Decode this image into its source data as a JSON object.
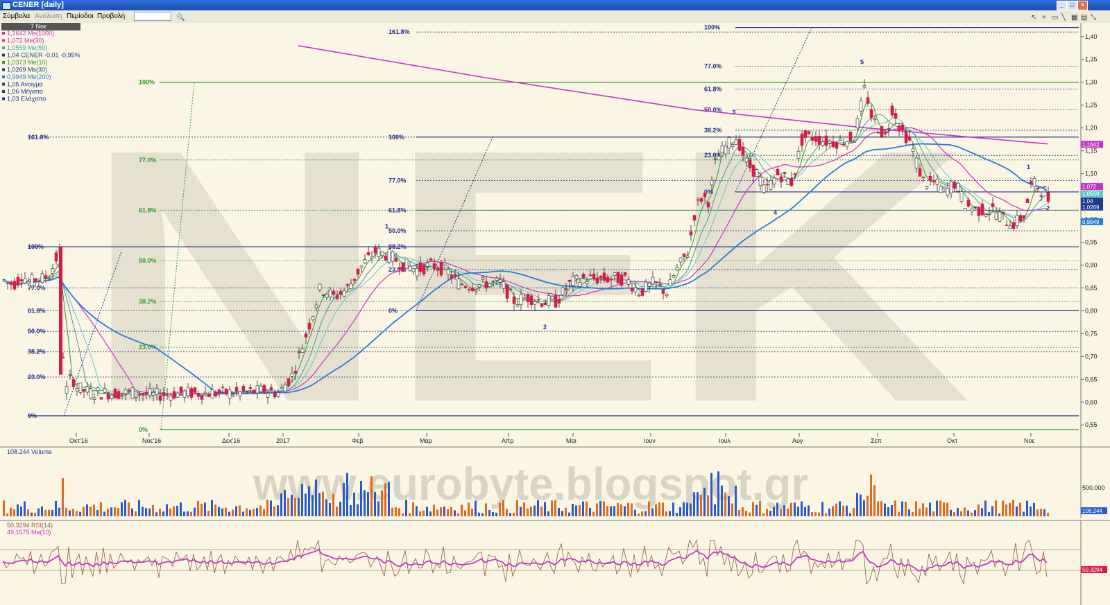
{
  "window": {
    "title": "CENER [daily]",
    "min": "_",
    "max": "□",
    "close": "×",
    "min2": "_",
    "max2": "□",
    "close2": "×"
  },
  "menu": [
    "Σύμβολα",
    "Ανάλυση",
    "Περίοδοι",
    "Προβολή"
  ],
  "toolbar_icons": [
    "cursor-icon",
    "crosshair-icon",
    "rectangle-icon",
    "line-icon",
    "grid-icon",
    "calendar-icon",
    "resize-icon"
  ],
  "colors": {
    "bg": "#fbf6e4",
    "up": "#ffffff",
    "down": "#d8194b",
    "ma1000": "#c535c5",
    "ma30": "#c535c5",
    "ma50": "#60c8c8",
    "ma10": "#2a9a2a",
    "ms30": "#1c3b8e",
    "ma200": "#2a7ad8",
    "fib_blue": "#1c2c8c",
    "fib_green": "#2a9a2a",
    "vol_up": "#2a5ad0",
    "vol_down": "#e06a20",
    "rsi": "#8a5a3a",
    "rsi_ma": "#c535c5"
  },
  "date_badge": "7 Νοε",
  "legend": [
    {
      "text": "1,1642 Ms(1000)",
      "color": "#c535c5"
    },
    {
      "text": "1,072 Me(30)",
      "color": "#c535c5"
    },
    {
      "text": "1,0559 Me(50)",
      "color": "#3aa8a8"
    },
    {
      "text": "1,04 CENER -0,01 -0,95%",
      "color": "#1c3b8e"
    },
    {
      "text": "1,0373 Me(10)",
      "color": "#2a9a2a"
    },
    {
      "text": "1,0269 Ms(30)",
      "color": "#1c3b8e"
    },
    {
      "text": "0,9949 Me(200)",
      "color": "#2a7ad8"
    },
    {
      "text": "1,05 Ανοιγμα",
      "color": "#1c3b8e"
    },
    {
      "text": "1,06 Μέγιστο",
      "color": "#1c3b8e"
    },
    {
      "text": "1,03 Ελάχιστο",
      "color": "#1c3b8e"
    }
  ],
  "watermark": "www.eurobyte.blogspot.gr",
  "background_letters": "NEK",
  "volume_label": "108.244 Volume",
  "rsi_labels": [
    "50,3294 RSI(14)",
    "49,1575 Ma(10)"
  ],
  "chart_data": {
    "type": "candlestick",
    "price_axis": {
      "min": 0.52,
      "max": 1.43,
      "ticks": [
        "1,40",
        "1,35",
        "1,30",
        "1,25",
        "1,20",
        "1,15",
        "1,10",
        "1,05",
        "1,00",
        "0,95",
        "0,90",
        "0,85",
        "0,80",
        "0,75",
        "0,70",
        "0,65",
        "0,60",
        "0,55"
      ]
    },
    "x_ticks": [
      "Οκτ'16",
      "Νοε'16",
      "Δεκ'16",
      "2017",
      "Φεβ",
      "Μαρ",
      "Απρ",
      "Μαι",
      "Ιουν",
      "Ιουλ",
      "Αυγ",
      "Σεπ",
      "Οκτ",
      "Νοε"
    ],
    "price_path": [
      [
        0,
        0.87
      ],
      [
        10,
        0.86
      ],
      [
        20,
        0.86
      ],
      [
        30,
        0.88
      ],
      [
        40,
        0.86
      ],
      [
        50,
        0.87
      ],
      [
        60,
        0.87
      ],
      [
        70,
        0.88
      ],
      [
        78,
        0.91
      ],
      [
        84,
        0.93
      ],
      [
        90,
        0.66
      ],
      [
        96,
        0.61
      ],
      [
        100,
        0.66
      ],
      [
        110,
        0.63
      ],
      [
        130,
        0.62
      ],
      [
        160,
        0.62
      ],
      [
        190,
        0.62
      ],
      [
        220,
        0.615
      ],
      [
        260,
        0.62
      ],
      [
        300,
        0.62
      ],
      [
        340,
        0.62
      ],
      [
        380,
        0.625
      ],
      [
        400,
        0.62
      ],
      [
        420,
        0.66
      ],
      [
        440,
        0.75
      ],
      [
        460,
        0.85
      ],
      [
        480,
        0.83
      ],
      [
        500,
        0.85
      ],
      [
        520,
        0.9
      ],
      [
        540,
        0.93
      ],
      [
        560,
        0.92
      ],
      [
        580,
        0.9
      ],
      [
        600,
        0.89
      ],
      [
        620,
        0.9
      ],
      [
        640,
        0.89
      ],
      [
        660,
        0.86
      ],
      [
        680,
        0.855
      ],
      [
        700,
        0.86
      ],
      [
        720,
        0.86
      ],
      [
        740,
        0.82
      ],
      [
        760,
        0.83
      ],
      [
        780,
        0.82
      ],
      [
        800,
        0.82
      ],
      [
        820,
        0.86
      ],
      [
        840,
        0.87
      ],
      [
        860,
        0.87
      ],
      [
        880,
        0.87
      ],
      [
        900,
        0.87
      ],
      [
        920,
        0.84
      ],
      [
        940,
        0.86
      ],
      [
        960,
        0.84
      ],
      [
        970,
        0.88
      ],
      [
        990,
        0.93
      ],
      [
        1000,
        1.02
      ],
      [
        1010,
        1.05
      ],
      [
        1020,
        1.04
      ],
      [
        1030,
        1.13
      ],
      [
        1045,
        1.16
      ],
      [
        1060,
        1.18
      ],
      [
        1075,
        1.12
      ],
      [
        1090,
        1.1
      ],
      [
        1100,
        1.06
      ],
      [
        1110,
        1.08
      ],
      [
        1120,
        1.1
      ],
      [
        1140,
        1.08
      ],
      [
        1155,
        1.18
      ],
      [
        1170,
        1.18
      ],
      [
        1190,
        1.17
      ],
      [
        1210,
        1.17
      ],
      [
        1230,
        1.18
      ],
      [
        1245,
        1.29
      ],
      [
        1255,
        1.22
      ],
      [
        1265,
        1.2
      ],
      [
        1275,
        1.18
      ],
      [
        1285,
        1.25
      ],
      [
        1295,
        1.2
      ],
      [
        1310,
        1.17
      ],
      [
        1320,
        1.12
      ],
      [
        1330,
        1.08
      ],
      [
        1345,
        1.08
      ],
      [
        1360,
        1.06
      ],
      [
        1375,
        1.08
      ],
      [
        1390,
        1.03
      ],
      [
        1410,
        1.02
      ],
      [
        1430,
        1.02
      ],
      [
        1445,
        1.0
      ],
      [
        1460,
        0.99
      ],
      [
        1475,
        1.01
      ],
      [
        1485,
        1.08
      ],
      [
        1495,
        1.07
      ],
      [
        1505,
        1.06
      ],
      [
        1510,
        1.04
      ]
    ],
    "moving_averages": [
      {
        "name": "Ms(1000)",
        "value": 1.1642
      },
      {
        "name": "Me(30)",
        "value": 1.072
      },
      {
        "name": "Me(50)",
        "value": 1.0559
      },
      {
        "name": "Me(10)",
        "value": 1.0373
      },
      {
        "name": "Ms(30)",
        "value": 1.0269
      },
      {
        "name": "Me(200)",
        "value": 0.9949
      }
    ],
    "last_price": 1.04,
    "price_badges": [
      "1,1642",
      "1,072",
      "1,0559",
      "1,04",
      "1,0269",
      "0,9949"
    ],
    "fib_sets": [
      {
        "color": "blue",
        "levels": [
          {
            "label": "161.8%",
            "price": 1.18
          },
          {
            "label": "100%",
            "price": 0.94
          },
          {
            "label": "77.0%",
            "price": 0.85
          },
          {
            "label": "61.8%",
            "price": 0.8
          },
          {
            "label": "50.0%",
            "price": 0.755
          },
          {
            "label": "38.2%",
            "price": 0.71
          },
          {
            "label": "23.0%",
            "price": 0.655
          },
          {
            "label": "0%",
            "price": 0.57
          }
        ]
      },
      {
        "color": "green",
        "levels": [
          {
            "label": "100%",
            "price": 1.3
          },
          {
            "label": "77.0%",
            "price": 1.13
          },
          {
            "label": "61.8%",
            "price": 1.02
          },
          {
            "label": "50.0%",
            "price": 0.91
          },
          {
            "label": "38.2%",
            "price": 0.82
          },
          {
            "label": "23.0%",
            "price": 0.72
          },
          {
            "label": "0%",
            "price": 0.54
          }
        ]
      },
      {
        "color": "blue",
        "levels": [
          {
            "label": "161.8%",
            "price": 1.41
          },
          {
            "label": "100%",
            "price": 1.18
          },
          {
            "label": "77.0%",
            "price": 1.085
          },
          {
            "label": "61.8%",
            "price": 1.02
          },
          {
            "label": "50.0%",
            "price": 0.975
          },
          {
            "label": "38.2%",
            "price": 0.94
          },
          {
            "label": "23.0%",
            "price": 0.89
          },
          {
            "label": "0%",
            "price": 0.8
          }
        ]
      },
      {
        "color": "blue",
        "levels": [
          {
            "label": "100%",
            "price": 1.42
          },
          {
            "label": "77.0%",
            "price": 1.335
          },
          {
            "label": "61.8%",
            "price": 1.285
          },
          {
            "label": "50.0%",
            "price": 1.24
          },
          {
            "label": "38.2%",
            "price": 1.195
          },
          {
            "label": "23.0%",
            "price": 1.14
          },
          {
            "label": "0%",
            "price": 1.06
          }
        ]
      }
    ],
    "wave_labels": [
      {
        "text": "1",
        "price": 0.98
      },
      {
        "text": "2",
        "price": 0.76
      },
      {
        "text": "3",
        "price": 1.23
      },
      {
        "text": "4",
        "price": 1.01
      },
      {
        "text": "5",
        "price": 1.34
      },
      {
        "text": "1",
        "price": 1.11
      },
      {
        "text": "2",
        "price": 1.02
      }
    ],
    "volume_axis": {
      "ticks": [
        "500.000"
      ],
      "last": "108.244"
    },
    "rsi_last": "50,3294"
  }
}
